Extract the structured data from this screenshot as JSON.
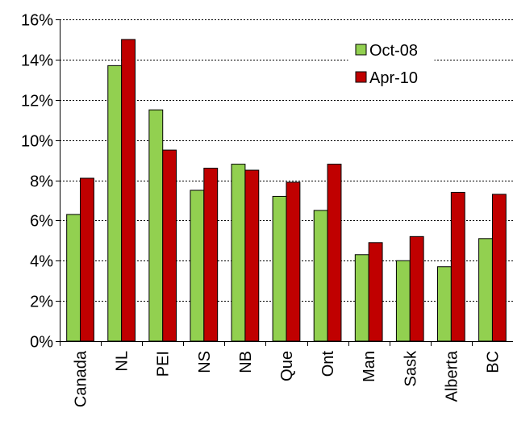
{
  "chart_data": {
    "type": "bar",
    "categories": [
      "Canada",
      "NL",
      "PEI",
      "NS",
      "NB",
      "Que",
      "Ont",
      "Man",
      "Sask",
      "Alberta",
      "BC"
    ],
    "series": [
      {
        "name": "Oct-08",
        "color": "#92d050",
        "values": [
          6.3,
          13.7,
          11.5,
          7.5,
          8.8,
          7.2,
          6.5,
          4.3,
          4.0,
          3.7,
          5.1
        ]
      },
      {
        "name": "Apr-10",
        "color": "#c00000",
        "values": [
          8.1,
          15.0,
          9.5,
          8.6,
          8.5,
          7.9,
          8.8,
          4.9,
          5.2,
          7.4,
          7.3
        ]
      }
    ],
    "ylim": [
      0,
      16
    ],
    "yticks": [
      0,
      2,
      4,
      6,
      8,
      10,
      12,
      14,
      16
    ],
    "ytick_labels": [
      "0%",
      "2%",
      "4%",
      "6%",
      "8%",
      "10%",
      "12%",
      "14%",
      "16%"
    ],
    "grid": "horizontal dashed",
    "legend": "top-right",
    "title": "",
    "xlabel": "",
    "ylabel": ""
  }
}
